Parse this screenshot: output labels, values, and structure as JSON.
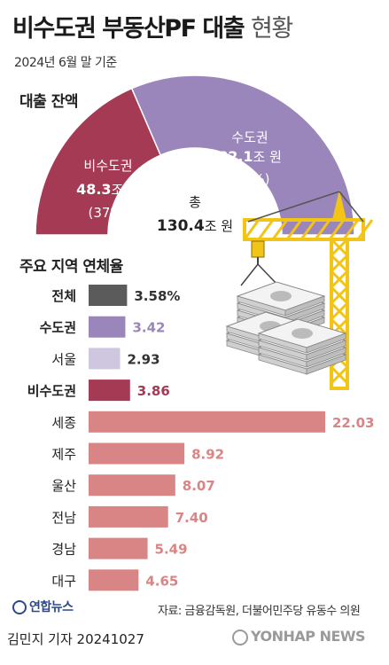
{
  "header": {
    "title_main": "비수도권 부동산PF 대출",
    "title_light": "현황",
    "subtitle": "2024년 6월 말 기준"
  },
  "colors": {
    "capital": "#9b86bb",
    "non_capital": "#a53a55",
    "total": "#5b5b5b",
    "seoul": "#cfc6e0",
    "regions": "#d98585",
    "crane": "#f2c415"
  },
  "icons": [
    "crane-icon",
    "money-stack-icon"
  ],
  "chart_data": [
    {
      "type": "pie",
      "title": "대출 잔액",
      "slices": [
        {
          "name": "비수도권",
          "value": 48.3,
          "unit": "조 원",
          "percent": "(37%)"
        },
        {
          "name": "수도권",
          "value": 82.1,
          "unit": "조 원",
          "percent": "(63%)"
        }
      ],
      "total": {
        "label": "총",
        "value": 130.4,
        "unit": "조 원"
      }
    },
    {
      "type": "bar",
      "orientation": "horizontal",
      "title": "주요 지역 연체율",
      "categories": [
        "전체",
        "수도권",
        "서울",
        "비수도권",
        "세종",
        "제주",
        "울산",
        "전남",
        "경남",
        "대구"
      ],
      "values": [
        3.58,
        3.42,
        2.93,
        3.86,
        22.03,
        8.92,
        8.07,
        7.4,
        5.49,
        4.65
      ],
      "value_labels": [
        "3.58%",
        "3.42",
        "2.93",
        "3.86",
        "22.03",
        "8.92",
        "8.07",
        "7.40",
        "5.49",
        "4.65"
      ],
      "bold_categories": [
        "전체",
        "수도권",
        "비수도권"
      ]
    }
  ],
  "footer": {
    "source": "자료: 금융감독원, 더불어민주당 유동수 의원",
    "logo_left": "연합뉴스",
    "credit": "김민지 기자  20241027",
    "logo_right": "YONHAP NEWS"
  }
}
